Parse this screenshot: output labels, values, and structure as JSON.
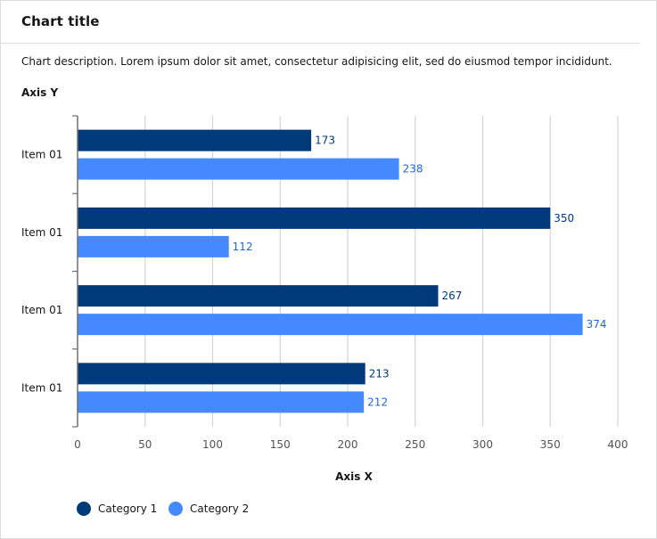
{
  "header": {
    "title": "Chart title",
    "description": "Chart description. Lorem ipsum dolor sit amet, consectetur adipisicing elit, sed do eiusmod tempor incididunt."
  },
  "colors": {
    "category_1": "#003a7a",
    "category_2": "#4589ff",
    "label_1": "#003a7a",
    "label_2": "#1f6ad6",
    "grid": "#d4d4d4",
    "axis": "#6f6f6f",
    "text": "#161616"
  },
  "chart_data": {
    "type": "bar",
    "orientation": "horizontal",
    "title": "Chart title",
    "xlabel": "Axis X",
    "ylabel": "Axis Y",
    "categories": [
      "Item 01",
      "Item 01",
      "Item 01",
      "Item 01"
    ],
    "series": [
      {
        "name": "Category 1",
        "values": [
          173,
          350,
          267,
          213
        ]
      },
      {
        "name": "Category 2",
        "values": [
          238,
          112,
          374,
          212
        ]
      }
    ],
    "xlim": [
      0,
      400
    ],
    "xticks": [
      0,
      50,
      100,
      150,
      200,
      250,
      300,
      350,
      400
    ],
    "grid": true,
    "legend_position": "bottom-left"
  }
}
